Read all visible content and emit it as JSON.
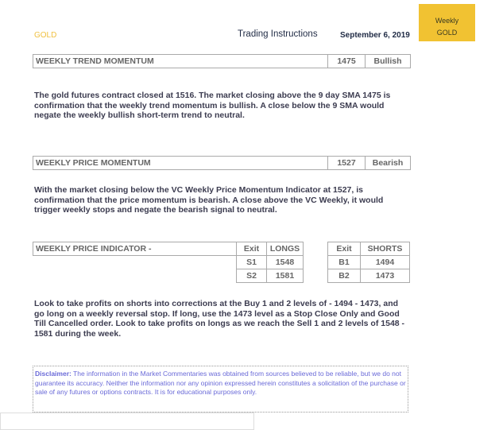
{
  "header": {
    "symbol": "GOLD",
    "title": "Trading Instructions",
    "date": "September 6, 2019",
    "badge_line1": "Weekly",
    "badge_line2": "GOLD"
  },
  "trend": {
    "label": "WEEKLY TREND MOMENTUM",
    "value": "1475",
    "signal": "Bullish",
    "text": "The gold futures contract closed at 1516. The market closing above the 9 day SMA 1475 is confirmation that the weekly trend momentum is bullish. A close below the 9 SMA would negate the weekly bullish short-term trend to neutral."
  },
  "price": {
    "label": "WEEKLY PRICE MOMENTUM",
    "value": "1527",
    "signal": "Bearish",
    "text": "With the market closing below the VC Weekly Price Momentum Indicator at 1527, is confirmation that the price momentum is bearish. A close above the VC Weekly, it would trigger weekly stops and negate the bearish signal to neutral."
  },
  "indicator": {
    "label": "WEEKLY PRICE INDICATOR -",
    "longs": {
      "h1": "Exit",
      "h2": "LONGS",
      "rows": [
        [
          "S1",
          "1548"
        ],
        [
          "S2",
          "1581"
        ]
      ]
    },
    "shorts": {
      "h1": "Exit",
      "h2": "SHORTS",
      "rows": [
        [
          "B1",
          "1494"
        ],
        [
          "B2",
          "1473"
        ]
      ]
    },
    "text": "Look to take profits on shorts into corrections at the Buy 1 and 2 levels of - 1494 - 1473, and go long on a weekly reversal stop. If long, use the 1473 level as a Stop Close Only and Good Till Cancelled order. Look to take profits on longs as we reach the Sell 1 and 2 levels of 1548 - 1581 during the week."
  },
  "disclaimer": {
    "label": "Disclaimer:",
    "text": " The information in the Market Commentaries was obtained from sources believed to be reliable, but we do not guarantee its accuracy. Neither the information nor any opinion expressed herein constitutes a solicitation of the purchase or sale of any futures or options contracts. It is for educational purposes only."
  }
}
